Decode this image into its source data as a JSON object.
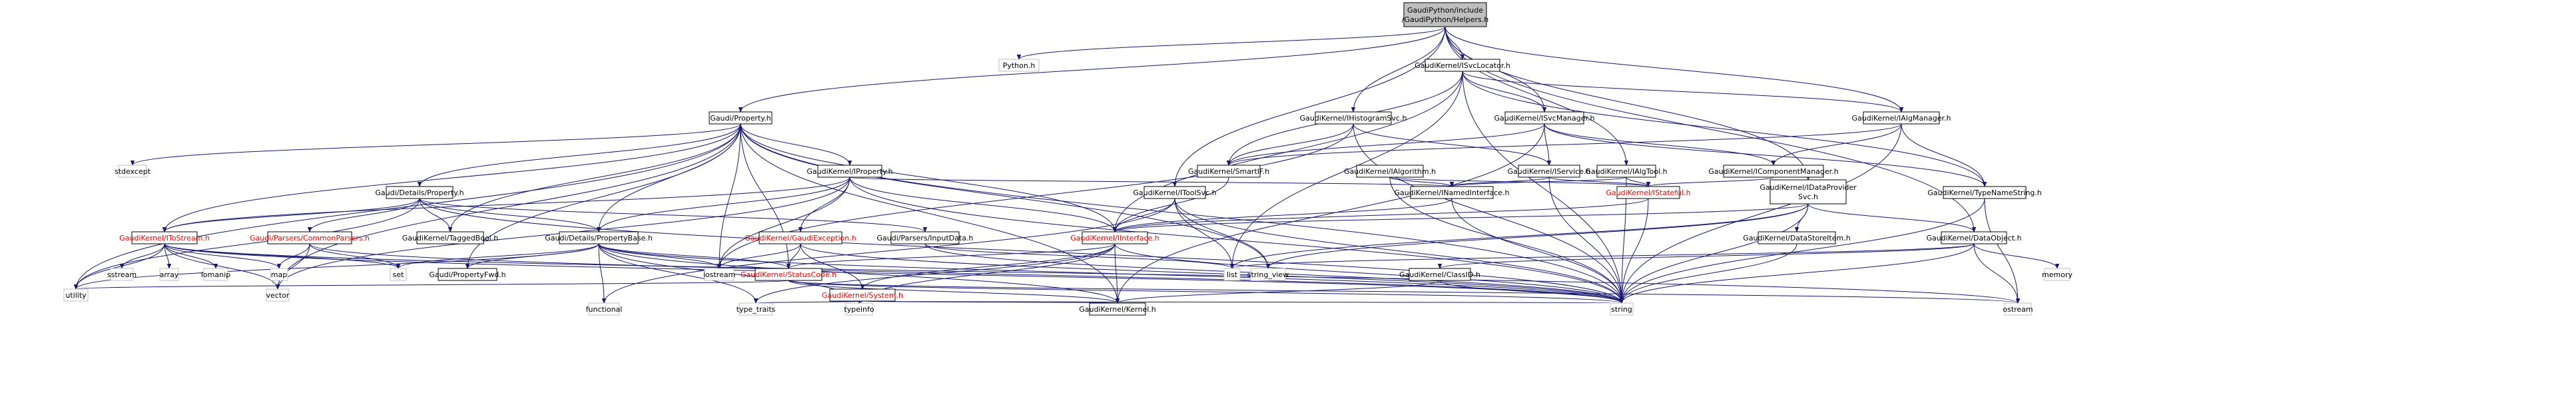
{
  "nodes": [
    {
      "lines": [
        "GaudiPython/include",
        "/GaudiPython/Helpers.h"
      ]
    },
    {
      "lines": [
        "Python.h"
      ]
    },
    {
      "lines": [
        "Gaudi/Property.h"
      ]
    },
    {
      "lines": [
        "GaudiKernel/ISvcLocator.h"
      ]
    },
    {
      "lines": [
        "GaudiKernel/IHistogramSvc.h"
      ]
    },
    {
      "lines": [
        "GaudiKernel/ISvcManager.h"
      ]
    },
    {
      "lines": [
        "GaudiKernel/IAlgManager.h"
      ]
    },
    {
      "lines": [
        "stdexcept"
      ]
    },
    {
      "lines": [
        "GaudiKernel/IProperty.h"
      ]
    },
    {
      "lines": [
        "GaudiKernel/SmartIF.h"
      ]
    },
    {
      "lines": [
        "GaudiKernel/IService.h"
      ]
    },
    {
      "lines": [
        "GaudiKernel/IAlgTool.h"
      ]
    },
    {
      "lines": [
        "GaudiKernel/IComponentManager.h"
      ]
    },
    {
      "lines": [
        "GaudiKernel/IAlgorithm.h"
      ]
    },
    {
      "lines": [
        "Gaudi/Details/Property.h"
      ]
    },
    {
      "lines": [
        "GaudiKernel/IToolSvc.h"
      ]
    },
    {
      "lines": [
        "GaudiKernel/INamedInterface.h"
      ]
    },
    {
      "lines": [
        "GaudiKernel/IStateful.h"
      ]
    },
    {
      "lines": [
        "GaudiKernel/IDataProvider",
        "Svc.h"
      ]
    },
    {
      "lines": [
        "GaudiKernel/TypeNameString.h"
      ]
    },
    {
      "lines": [
        "GaudiKernel/IToStream.h"
      ]
    },
    {
      "lines": [
        "Gaudi/Parsers/CommonParsers.h"
      ]
    },
    {
      "lines": [
        "GaudiKernel/TaggedBool.h"
      ]
    },
    {
      "lines": [
        "Gaudi/Details/PropertyBase.h"
      ]
    },
    {
      "lines": [
        "GaudiKernel/GaudiException.h"
      ]
    },
    {
      "lines": [
        "Gaudi/Parsers/InputData.h"
      ]
    },
    {
      "lines": [
        "GaudiKernel/IInterface.h"
      ]
    },
    {
      "lines": [
        "GaudiKernel/DataStoreItem.h"
      ]
    },
    {
      "lines": [
        "GaudiKernel/DataObject.h"
      ]
    },
    {
      "lines": [
        "sstream"
      ]
    },
    {
      "lines": [
        "array"
      ]
    },
    {
      "lines": [
        "iomanip"
      ]
    },
    {
      "lines": [
        "map"
      ]
    },
    {
      "lines": [
        "set"
      ]
    },
    {
      "lines": [
        "Gaudi/PropertyFwd.h"
      ]
    },
    {
      "lines": [
        "iostream"
      ]
    },
    {
      "lines": [
        "GaudiKernel/StatusCode.h"
      ]
    },
    {
      "lines": [
        "list"
      ]
    },
    {
      "lines": [
        "string_view"
      ]
    },
    {
      "lines": [
        "GaudiKernel/ClassID.h"
      ]
    },
    {
      "lines": [
        "memory"
      ]
    },
    {
      "lines": [
        "utility"
      ]
    },
    {
      "lines": [
        "vector"
      ]
    },
    {
      "lines": [
        "GaudiKernel/System.h"
      ]
    },
    {
      "lines": [
        "functional"
      ]
    },
    {
      "lines": [
        "type_traits"
      ]
    },
    {
      "lines": [
        "typeinfo"
      ]
    },
    {
      "lines": [
        "GaudiKernel/Kernel.h"
      ]
    },
    {
      "lines": [
        "string"
      ]
    },
    {
      "lines": [
        "ostream"
      ]
    }
  ]
}
